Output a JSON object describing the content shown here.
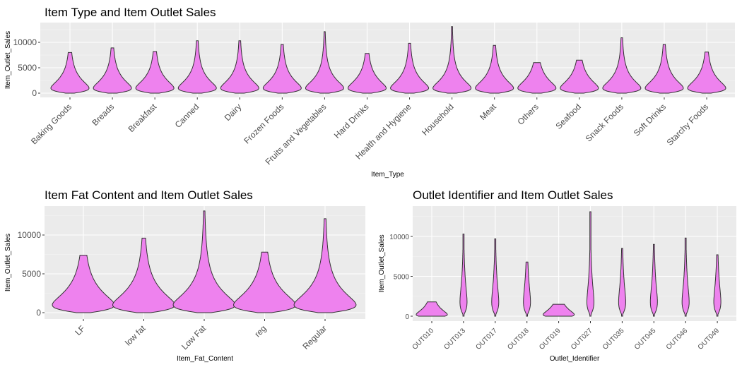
{
  "chart_data": [
    {
      "type": "violin",
      "title": "Item Type and Item Outlet Sales",
      "xlabel": "Item_Type",
      "ylabel": "Item_Outlet_Sales",
      "ylim": [
        -800,
        13800
      ],
      "yticks": [
        0,
        5000,
        10000
      ],
      "grid": true,
      "fill": "#EE82EE",
      "categories": [
        "Baking Goods",
        "Breads",
        "Breakfast",
        "Canned",
        "Dairy",
        "Frozen Foods",
        "Fruits and Vegetables",
        "Hard Drinks",
        "Health and Hygiene",
        "Household",
        "Meat",
        "Others",
        "Seafood",
        "Snack Foods",
        "Soft Drinks",
        "Starchy Foods"
      ],
      "max": [
        8000,
        8900,
        8200,
        10300,
        10300,
        9600,
        12100,
        7800,
        9800,
        13100,
        9400,
        6000,
        6500,
        10900,
        9600,
        8100
      ]
    },
    {
      "type": "violin",
      "title": "Item Fat Content and Item Outlet Sales",
      "xlabel": "Item_Fat_Content",
      "ylabel": "Item_Outlet_Sales",
      "ylim": [
        -800,
        13800
      ],
      "yticks": [
        0,
        5000,
        10000
      ],
      "grid": true,
      "fill": "#EE82EE",
      "categories": [
        "LF",
        "low fat",
        "Low Fat",
        "reg",
        "Regular"
      ],
      "max": [
        7400,
        9600,
        13100,
        7800,
        12100
      ]
    },
    {
      "type": "violin",
      "title": "Outlet Identifier and Item Outlet Sales",
      "xlabel": "Outlet_Identifier",
      "ylabel": "Item_Outlet_Sales",
      "ylim": [
        -800,
        13800
      ],
      "yticks": [
        0,
        5000,
        10000
      ],
      "grid": true,
      "fill": "#EE82EE",
      "categories": [
        "OUT010",
        "OUT013",
        "OUT017",
        "OUT018",
        "OUT019",
        "OUT027",
        "OUT035",
        "OUT045",
        "OUT046",
        "OUT049"
      ],
      "max": [
        1800,
        10300,
        9700,
        6800,
        1500,
        13100,
        8500,
        9000,
        9800,
        7700
      ]
    }
  ]
}
